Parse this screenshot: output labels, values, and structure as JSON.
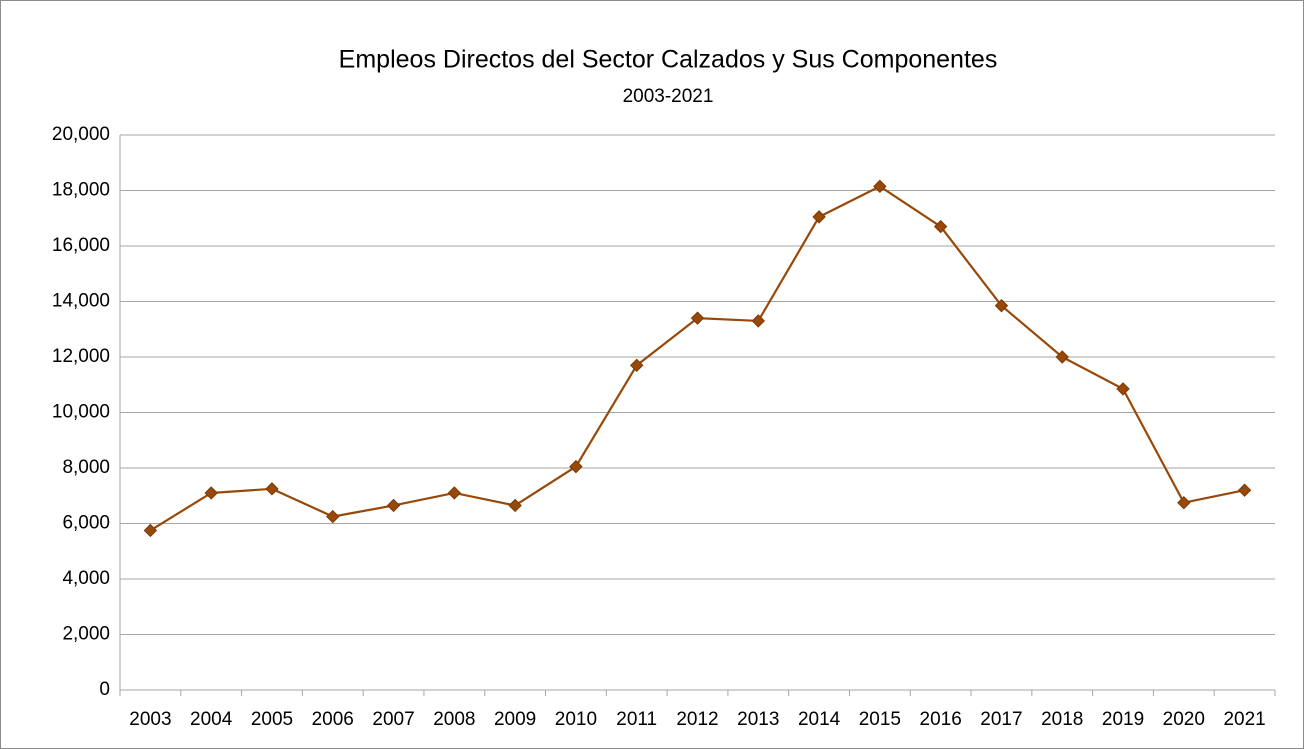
{
  "chart_data": {
    "type": "line",
    "title": "Empleos Directos del Sector Calzados y Sus Componentes",
    "subtitle": "2003-2021",
    "categories": [
      "2003",
      "2004",
      "2005",
      "2006",
      "2007",
      "2008",
      "2009",
      "2010",
      "2011",
      "2012",
      "2013",
      "2014",
      "2015",
      "2016",
      "2017",
      "2018",
      "2019",
      "2020",
      "2021"
    ],
    "series": [
      {
        "name": "Empleos",
        "color": "#984807",
        "values": [
          5750,
          7100,
          7250,
          6250,
          6650,
          7100,
          6650,
          8050,
          11700,
          13400,
          13300,
          17050,
          18150,
          16700,
          13850,
          12000,
          10850,
          6750,
          7200
        ]
      }
    ],
    "ylim": [
      0,
      20000
    ],
    "yticks": [
      0,
      {
        "value": 2000,
        "label": "2,000"
      },
      {
        "value": 4000,
        "label": "4,000"
      },
      {
        "value": 6000,
        "label": "6,000"
      },
      {
        "value": 8000,
        "label": "8,000"
      },
      {
        "value": 10000,
        "label": "10,000"
      },
      {
        "value": 12000,
        "label": "12,000"
      },
      {
        "value": 14000,
        "label": "14,000"
      },
      {
        "value": 16000,
        "label": "16,000"
      },
      {
        "value": 18000,
        "label": "18,000"
      },
      {
        "value": 20000,
        "label": "20,000"
      }
    ],
    "grid": true
  }
}
